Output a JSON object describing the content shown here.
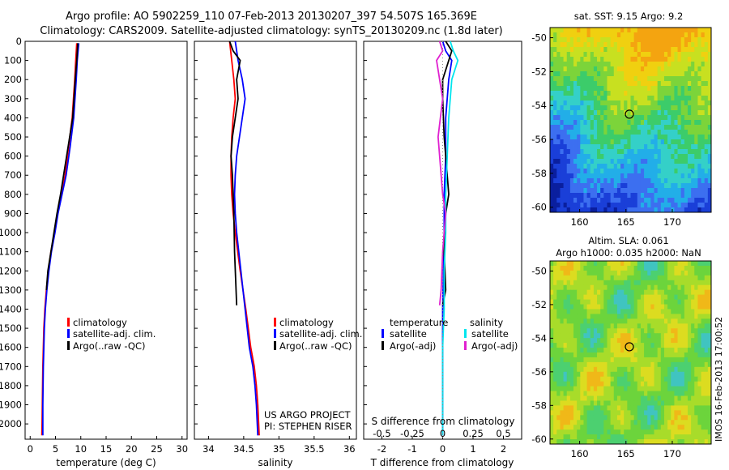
{
  "header": {
    "line1": "Argo profile: AO 5902259_110 07-Feb-2013 20130207_397 54.507S 165.369E",
    "line2": "Climatology: CARS2009. Satellite-adjusted climatology: synTS_20130209.nc (1.8d later)"
  },
  "footer": {
    "project": "US ARGO PROJECT",
    "pi": "PI: STEPHEN RISER",
    "stamp": "IMOS 16-Feb-2013 17:00:52"
  },
  "colors": {
    "climatology": "#ff0000",
    "satellite": "#0000ff",
    "argo": "#000000",
    "sal_satellite": "#00e5ee",
    "sal_argo": "#e020d0"
  },
  "chart_data": [
    {
      "type": "line",
      "panel": "temperature",
      "xlabel": "temperature (deg C)",
      "xticks": [
        "0",
        "5",
        "10",
        "15",
        "20",
        "25",
        "30"
      ],
      "xlim": [
        -1,
        31
      ],
      "ylim": [
        2080,
        0
      ],
      "yticks": [
        "0",
        "100",
        "200",
        "300",
        "400",
        "500",
        "600",
        "700",
        "800",
        "900",
        "1000",
        "1100",
        "1200",
        "1300",
        "1400",
        "1500",
        "1600",
        "1700",
        "1800",
        "1900",
        "2000"
      ],
      "legend": [
        "climatology",
        "satellite-adj. clim.",
        "Argo(..raw -QC)"
      ],
      "series": [
        {
          "name": "climatology",
          "x": [
            9.2,
            9.0,
            8.8,
            8.3,
            7.6,
            6.9,
            6.2,
            5.4,
            4.8,
            4.1,
            3.6,
            3.2,
            2.9,
            2.7,
            2.6,
            2.5,
            2.45,
            2.4,
            2.35,
            2.3
          ],
          "y": [
            10,
            100,
            200,
            400,
            550,
            700,
            800,
            900,
            1000,
            1100,
            1200,
            1300,
            1400,
            1500,
            1600,
            1700,
            1800,
            1900,
            2000,
            2060
          ]
        },
        {
          "name": "satellite-adj. clim.",
          "x": [
            9.6,
            9.3,
            9.1,
            8.6,
            7.9,
            7.1,
            6.3,
            5.5,
            4.9,
            4.2,
            3.7,
            3.3,
            3.0,
            2.8,
            2.7,
            2.6,
            2.55,
            2.5,
            2.5,
            2.5
          ],
          "y": [
            10,
            100,
            200,
            400,
            550,
            700,
            800,
            900,
            1000,
            1100,
            1200,
            1300,
            1400,
            1500,
            1600,
            1700,
            1800,
            1900,
            2000,
            2060
          ]
        },
        {
          "name": "Argo(..raw -QC)",
          "x": [
            9.4,
            9.2,
            8.9,
            8.4,
            7.5,
            6.6,
            6.0,
            5.3,
            4.7,
            4.1,
            3.5,
            3.2
          ],
          "y": [
            10,
            100,
            200,
            400,
            550,
            700,
            800,
            900,
            1000,
            1100,
            1200,
            1300
          ]
        }
      ]
    },
    {
      "type": "line",
      "panel": "salinity",
      "xlabel": "salinity",
      "xticks": [
        "34",
        "34.5",
        "35",
        "35.5",
        "36"
      ],
      "xlim": [
        33.8,
        36.1
      ],
      "ylim": [
        2080,
        0
      ],
      "legend": [
        "climatology",
        "satellite-adj. clim.",
        "Argo(..raw -QC)"
      ],
      "series": [
        {
          "name": "climatology",
          "x": [
            34.3,
            34.33,
            34.36,
            34.38,
            34.35,
            34.33,
            34.32,
            34.32,
            34.33,
            34.35,
            34.38,
            34.45,
            34.53,
            34.6,
            34.65,
            34.68,
            34.7,
            34.72
          ],
          "y": [
            0,
            100,
            200,
            300,
            400,
            500,
            600,
            700,
            800,
            900,
            1000,
            1200,
            1400,
            1600,
            1700,
            1800,
            1900,
            2060
          ]
        },
        {
          "name": "satellite-adj. clim.",
          "x": [
            34.38,
            34.42,
            34.48,
            34.52,
            34.48,
            34.44,
            34.4,
            34.38,
            34.37,
            34.38,
            34.4,
            34.46,
            34.52,
            34.58,
            34.63,
            34.66,
            34.68,
            34.7
          ],
          "y": [
            0,
            100,
            200,
            300,
            400,
            500,
            600,
            700,
            800,
            900,
            1000,
            1200,
            1400,
            1600,
            1700,
            1800,
            1900,
            2060
          ]
        },
        {
          "name": "Argo(..raw -QC)",
          "x": [
            34.3,
            34.35,
            34.45,
            34.4,
            34.42,
            34.38,
            34.34,
            34.32,
            34.34,
            34.35,
            34.36,
            34.37,
            34.4
          ],
          "y": [
            0,
            50,
            100,
            200,
            300,
            400,
            500,
            600,
            700,
            800,
            900,
            1100,
            1380
          ]
        }
      ]
    },
    {
      "type": "line",
      "panel": "difference",
      "xlabel": "T difference from climatology",
      "top_label": "S difference from climatology",
      "xticks_bottom": [
        "-2",
        "-1",
        "0",
        "1",
        "2"
      ],
      "xticks_top": [
        "-0.5",
        "-0.25",
        "0",
        "0.25",
        "0.5"
      ],
      "xlim": [
        -2.6,
        2.6
      ],
      "ylim": [
        2080,
        0
      ],
      "legend_titles": [
        "temperature",
        "salinity"
      ],
      "legend": [
        "satellite",
        "Argo(-adj)",
        "satellite",
        "Argo(-adj)"
      ],
      "series": [
        {
          "name": "satellite",
          "x": [
            0.0,
            0.1,
            0.3,
            0.2,
            0.1,
            0.1,
            0.05,
            0.05,
            0.0,
            0.0,
            0.0
          ],
          "y": [
            0,
            50,
            100,
            200,
            400,
            600,
            800,
            1000,
            1400,
            1800,
            2060
          ]
        },
        {
          "name": "Argo(-adj)",
          "x": [
            0.1,
            0.3,
            0.2,
            0.0,
            0.0,
            0.05,
            0.15,
            0.2,
            0.1,
            0.05,
            0.1,
            0.0
          ],
          "y": [
            0,
            50,
            100,
            200,
            300,
            500,
            700,
            800,
            900,
            1100,
            1300,
            1380
          ]
        },
        {
          "name": "satellite",
          "x": [
            0.25,
            0.35,
            0.5,
            0.3,
            0.2,
            0.15,
            0.1,
            0.1,
            0.05,
            0.05,
            0.0,
            0.0,
            0.0
          ],
          "y": [
            0,
            50,
            100,
            200,
            400,
            600,
            800,
            1000,
            1200,
            1400,
            1600,
            1800,
            2060
          ]
        },
        {
          "name": "Argo(-adj)",
          "x": [
            -0.1,
            0.0,
            -0.2,
            -0.1,
            0.0,
            -0.15,
            -0.05,
            0.0,
            0.1,
            0.0,
            -0.05,
            -0.1
          ],
          "y": [
            0,
            50,
            100,
            200,
            300,
            500,
            700,
            800,
            900,
            1100,
            1300,
            1380
          ]
        }
      ]
    },
    {
      "type": "heatmap",
      "panel": "sst_map",
      "title": "sat. SST: 9.15 Argo: 9.2",
      "xticks": [
        "160",
        "165",
        "170"
      ],
      "yticks": [
        "-50",
        "-52",
        "-54",
        "-56",
        "-58",
        "-60"
      ],
      "xlim": [
        156.8,
        174.2
      ],
      "ylim": [
        -60.3,
        -49.4
      ],
      "profile": {
        "lon": 165.37,
        "lat": -54.51
      }
    },
    {
      "type": "heatmap",
      "panel": "sla_map",
      "title": "Altim. SLA: 0.061",
      "subtitle": "Argo h1000: 0.035 h2000: NaN",
      "xticks": [
        "160",
        "165",
        "170"
      ],
      "yticks": [
        "-50",
        "-52",
        "-54",
        "-56",
        "-58",
        "-60"
      ],
      "xlim": [
        156.8,
        174.2
      ],
      "ylim": [
        -60.3,
        -49.4
      ],
      "profile": {
        "lon": 165.37,
        "lat": -54.51
      }
    }
  ]
}
